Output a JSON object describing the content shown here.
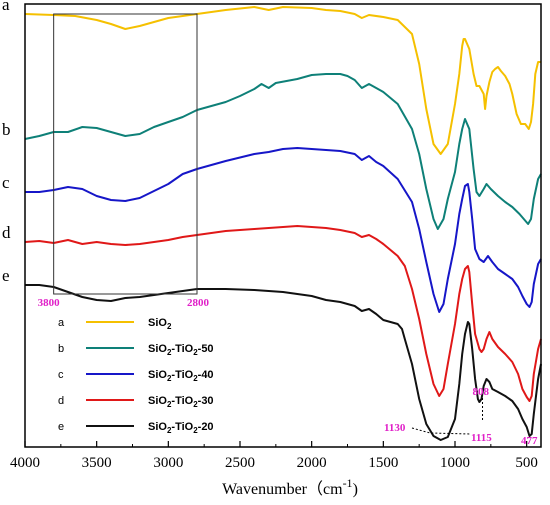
{
  "chart_data": {
    "type": "line",
    "title": "",
    "xlabel": "Wavenumber（cm",
    "xlabel_sup": "-1",
    "xlabel_close": ")",
    "ylabel": "",
    "xlim": [
      4000,
      400
    ],
    "x_ticks": [
      4000,
      3500,
      3000,
      2500,
      2000,
      1500,
      1000,
      500
    ],
    "grid": false,
    "legend": "lower-left",
    "series": [
      {
        "id": "a",
        "letter": "a",
        "name_main": "SiO",
        "name_sub": "2",
        "name_rest": "",
        "color": "#F5C000",
        "points": [
          [
            4000,
            10
          ],
          [
            3800,
            11
          ],
          [
            3650,
            12
          ],
          [
            3500,
            16
          ],
          [
            3400,
            20
          ],
          [
            3300,
            25
          ],
          [
            3200,
            22
          ],
          [
            3100,
            18
          ],
          [
            3000,
            14
          ],
          [
            2900,
            12
          ],
          [
            2800,
            10
          ],
          [
            2600,
            6
          ],
          [
            2400,
            3
          ],
          [
            2300,
            6
          ],
          [
            2200,
            3
          ],
          [
            2000,
            4
          ],
          [
            1900,
            6
          ],
          [
            1800,
            7
          ],
          [
            1700,
            10
          ],
          [
            1650,
            14
          ],
          [
            1600,
            11
          ],
          [
            1500,
            13
          ],
          [
            1400,
            16
          ],
          [
            1300,
            30
          ],
          [
            1250,
            60
          ],
          [
            1200,
            105
          ],
          [
            1150,
            140
          ],
          [
            1100,
            150
          ],
          [
            1050,
            140
          ],
          [
            1000,
            100
          ],
          [
            970,
            70
          ],
          [
            950,
            42
          ],
          [
            940,
            35
          ],
          [
            930,
            35
          ],
          [
            900,
            45
          ],
          [
            870,
            70
          ],
          [
            850,
            82
          ],
          [
            830,
            82
          ],
          [
            800,
            90
          ],
          [
            790,
            105
          ],
          [
            780,
            92
          ],
          [
            760,
            78
          ],
          [
            740,
            68
          ],
          [
            720,
            65
          ],
          [
            700,
            63
          ],
          [
            680,
            67
          ],
          [
            650,
            72
          ],
          [
            620,
            80
          ],
          [
            600,
            90
          ],
          [
            570,
            110
          ],
          [
            540,
            120
          ],
          [
            510,
            120
          ],
          [
            485,
            125
          ],
          [
            470,
            118
          ],
          [
            455,
            100
          ],
          [
            440,
            70
          ],
          [
            420,
            58
          ],
          [
            400,
            58
          ]
        ]
      },
      {
        "id": "b",
        "letter": "b",
        "name_main": "SiO",
        "name_sub": "2",
        "name_rest": "-TiO",
        "name_sub2": "2",
        "name_tail": "-50",
        "color": "#0E8078",
        "points": [
          [
            4000,
            135
          ],
          [
            3900,
            132
          ],
          [
            3800,
            128
          ],
          [
            3700,
            128
          ],
          [
            3600,
            123
          ],
          [
            3500,
            124
          ],
          [
            3400,
            128
          ],
          [
            3300,
            132
          ],
          [
            3200,
            130
          ],
          [
            3100,
            123
          ],
          [
            3000,
            118
          ],
          [
            2900,
            113
          ],
          [
            2800,
            106
          ],
          [
            2600,
            98
          ],
          [
            2500,
            92
          ],
          [
            2400,
            85
          ],
          [
            2350,
            80
          ],
          [
            2300,
            84
          ],
          [
            2250,
            79
          ],
          [
            2100,
            75
          ],
          [
            2000,
            71
          ],
          [
            1900,
            70
          ],
          [
            1800,
            70
          ],
          [
            1750,
            72
          ],
          [
            1700,
            76
          ],
          [
            1650,
            84
          ],
          [
            1600,
            80
          ],
          [
            1550,
            84
          ],
          [
            1500,
            88
          ],
          [
            1400,
            100
          ],
          [
            1300,
            125
          ],
          [
            1250,
            150
          ],
          [
            1200,
            185
          ],
          [
            1150,
            215
          ],
          [
            1120,
            225
          ],
          [
            1080,
            215
          ],
          [
            1050,
            195
          ],
          [
            1000,
            168
          ],
          [
            970,
            140
          ],
          [
            950,
            125
          ],
          [
            930,
            115
          ],
          [
            900,
            125
          ],
          [
            870,
            165
          ],
          [
            850,
            188
          ],
          [
            830,
            192
          ],
          [
            800,
            185
          ],
          [
            780,
            180
          ],
          [
            750,
            185
          ],
          [
            700,
            192
          ],
          [
            650,
            198
          ],
          [
            600,
            203
          ],
          [
            550,
            210
          ],
          [
            520,
            215
          ],
          [
            490,
            220
          ],
          [
            470,
            215
          ],
          [
            450,
            195
          ],
          [
            420,
            175
          ],
          [
            400,
            170
          ]
        ]
      },
      {
        "id": "c",
        "letter": "c",
        "name_main": "SiO",
        "name_sub": "2",
        "name_rest": "-TiO",
        "name_sub2": "2",
        "name_tail": "-40",
        "color": "#1616C8",
        "points": [
          [
            4000,
            188
          ],
          [
            3900,
            188
          ],
          [
            3800,
            186
          ],
          [
            3700,
            183
          ],
          [
            3600,
            185
          ],
          [
            3500,
            192
          ],
          [
            3400,
            196
          ],
          [
            3300,
            197
          ],
          [
            3200,
            194
          ],
          [
            3100,
            187
          ],
          [
            3000,
            180
          ],
          [
            2900,
            170
          ],
          [
            2800,
            165
          ],
          [
            2600,
            157
          ],
          [
            2400,
            150
          ],
          [
            2300,
            148
          ],
          [
            2200,
            145
          ],
          [
            2100,
            144
          ],
          [
            2000,
            145
          ],
          [
            1900,
            146
          ],
          [
            1800,
            147
          ],
          [
            1700,
            150
          ],
          [
            1650,
            156
          ],
          [
            1600,
            152
          ],
          [
            1550,
            158
          ],
          [
            1500,
            162
          ],
          [
            1400,
            175
          ],
          [
            1300,
            198
          ],
          [
            1250,
            225
          ],
          [
            1200,
            258
          ],
          [
            1150,
            290
          ],
          [
            1110,
            308
          ],
          [
            1080,
            300
          ],
          [
            1050,
            275
          ],
          [
            1000,
            240
          ],
          [
            970,
            210
          ],
          [
            950,
            195
          ],
          [
            930,
            182
          ],
          [
            910,
            180
          ],
          [
            900,
            188
          ],
          [
            880,
            215
          ],
          [
            860,
            245
          ],
          [
            830,
            255
          ],
          [
            800,
            258
          ],
          [
            770,
            252
          ],
          [
            740,
            258
          ],
          [
            700,
            265
          ],
          [
            650,
            270
          ],
          [
            600,
            275
          ],
          [
            560,
            283
          ],
          [
            530,
            292
          ],
          [
            500,
            300
          ],
          [
            480,
            303
          ],
          [
            465,
            298
          ],
          [
            450,
            280
          ],
          [
            420,
            260
          ],
          [
            400,
            255
          ]
        ]
      },
      {
        "id": "d",
        "letter": "d",
        "name_main": "SiO",
        "name_sub": "2",
        "name_rest": "-TiO",
        "name_sub2": "2",
        "name_tail": "-30",
        "color": "#E01818",
        "points": [
          [
            4000,
            238
          ],
          [
            3900,
            237
          ],
          [
            3800,
            239
          ],
          [
            3700,
            236
          ],
          [
            3600,
            240
          ],
          [
            3500,
            238
          ],
          [
            3400,
            240
          ],
          [
            3300,
            241
          ],
          [
            3200,
            240
          ],
          [
            3100,
            238
          ],
          [
            3000,
            236
          ],
          [
            2900,
            233
          ],
          [
            2800,
            231
          ],
          [
            2600,
            227
          ],
          [
            2400,
            225
          ],
          [
            2300,
            224
          ],
          [
            2200,
            223
          ],
          [
            2100,
            222
          ],
          [
            2000,
            223
          ],
          [
            1900,
            224
          ],
          [
            1800,
            226
          ],
          [
            1700,
            229
          ],
          [
            1650,
            233
          ],
          [
            1600,
            231
          ],
          [
            1550,
            235
          ],
          [
            1500,
            240
          ],
          [
            1400,
            252
          ],
          [
            1350,
            262
          ],
          [
            1300,
            285
          ],
          [
            1250,
            315
          ],
          [
            1200,
            350
          ],
          [
            1150,
            380
          ],
          [
            1110,
            392
          ],
          [
            1080,
            385
          ],
          [
            1050,
            360
          ],
          [
            1000,
            320
          ],
          [
            970,
            290
          ],
          [
            950,
            275
          ],
          [
            930,
            265
          ],
          [
            910,
            262
          ],
          [
            900,
            268
          ],
          [
            880,
            300
          ],
          [
            860,
            330
          ],
          [
            830,
            345
          ],
          [
            815,
            348
          ],
          [
            800,
            345
          ],
          [
            780,
            335
          ],
          [
            760,
            328
          ],
          [
            740,
            335
          ],
          [
            700,
            343
          ],
          [
            650,
            350
          ],
          [
            600,
            358
          ],
          [
            560,
            370
          ],
          [
            530,
            385
          ],
          [
            500,
            393
          ],
          [
            480,
            397
          ],
          [
            465,
            392
          ],
          [
            450,
            370
          ],
          [
            420,
            345
          ],
          [
            400,
            335
          ]
        ]
      },
      {
        "id": "e",
        "letter": "e",
        "name_main": "SiO",
        "name_sub": "2",
        "name_rest": "-TiO",
        "name_sub2": "2",
        "name_tail": "-20",
        "color": "#111111",
        "points": [
          [
            4000,
            281
          ],
          [
            3900,
            281
          ],
          [
            3800,
            283
          ],
          [
            3700,
            288
          ],
          [
            3600,
            293
          ],
          [
            3500,
            296
          ],
          [
            3400,
            297
          ],
          [
            3300,
            294
          ],
          [
            3200,
            293
          ],
          [
            3100,
            291
          ],
          [
            3000,
            289
          ],
          [
            2900,
            287
          ],
          [
            2800,
            285
          ],
          [
            2600,
            285
          ],
          [
            2400,
            286
          ],
          [
            2300,
            287
          ],
          [
            2200,
            288
          ],
          [
            2100,
            290
          ],
          [
            2000,
            292
          ],
          [
            1900,
            296
          ],
          [
            1800,
            298
          ],
          [
            1700,
            302
          ],
          [
            1650,
            307
          ],
          [
            1600,
            305
          ],
          [
            1550,
            310
          ],
          [
            1500,
            316
          ],
          [
            1400,
            320
          ],
          [
            1370,
            325
          ],
          [
            1350,
            335
          ],
          [
            1300,
            360
          ],
          [
            1250,
            395
          ],
          [
            1200,
            420
          ],
          [
            1150,
            432
          ],
          [
            1100,
            436
          ],
          [
            1050,
            433
          ],
          [
            1000,
            415
          ],
          [
            970,
            380
          ],
          [
            950,
            350
          ],
          [
            930,
            330
          ],
          [
            910,
            318
          ],
          [
            900,
            320
          ],
          [
            880,
            345
          ],
          [
            860,
            375
          ],
          [
            840,
            395
          ],
          [
            830,
            398
          ],
          [
            815,
            395
          ],
          [
            800,
            382
          ],
          [
            780,
            375
          ],
          [
            760,
            378
          ],
          [
            740,
            385
          ],
          [
            700,
            388
          ],
          [
            650,
            392
          ],
          [
            600,
            397
          ],
          [
            560,
            405
          ],
          [
            530,
            415
          ],
          [
            500,
            423
          ],
          [
            480,
            432
          ],
          [
            465,
            430
          ],
          [
            450,
            410
          ],
          [
            420,
            375
          ],
          [
            400,
            360
          ]
        ]
      }
    ],
    "inset_box": {
      "x_start": 3800,
      "x_end": 2800,
      "label_start": "3800",
      "label_end": "2800"
    },
    "annotations": [
      {
        "id": "ann-1130",
        "text": "1130",
        "x": 1130
      },
      {
        "id": "ann-1115",
        "text": "1115",
        "x": 1115
      },
      {
        "id": "ann-808",
        "text": "808",
        "x": 808
      },
      {
        "id": "ann-477",
        "text": "477",
        "x": 477
      }
    ],
    "annotation_color": "#E020C8"
  }
}
